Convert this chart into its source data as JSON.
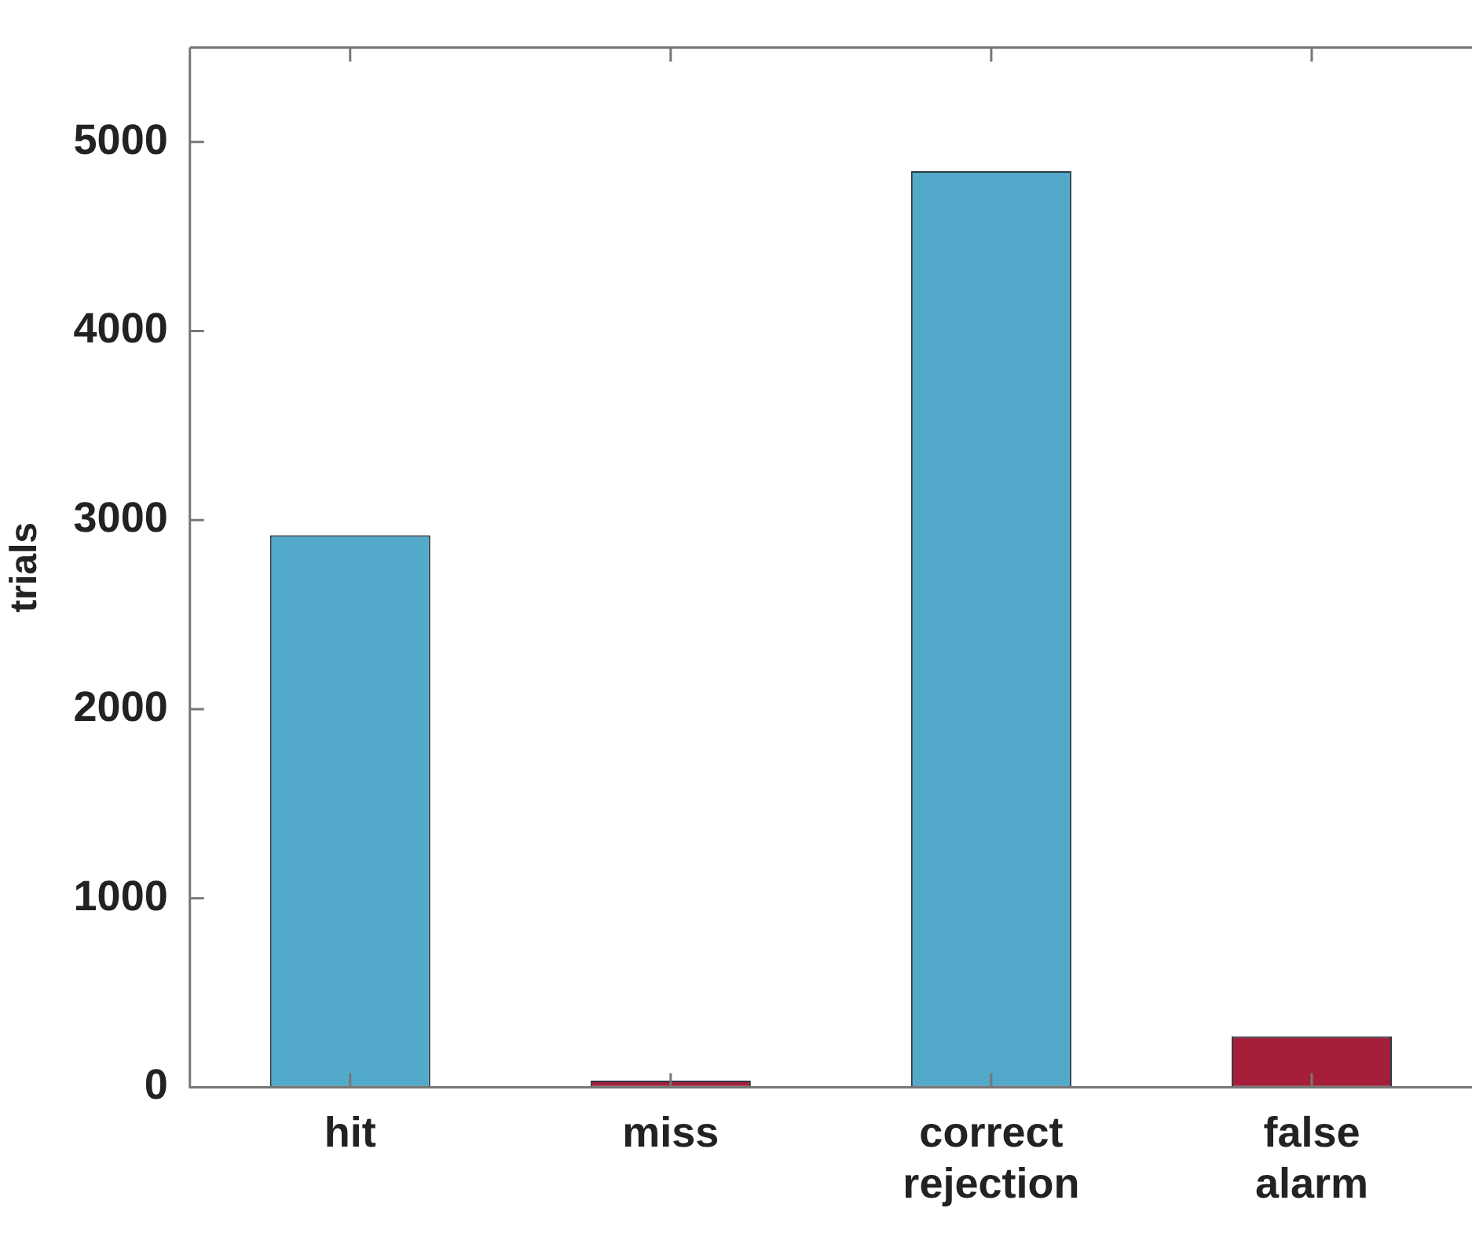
{
  "chart_data": {
    "type": "bar",
    "ylabel": "trials",
    "categories": [
      "hit",
      "miss",
      "correct rejection",
      "false alarm"
    ],
    "values": [
      2920,
      35,
      4845,
      270
    ],
    "colors": [
      "#52a9c9",
      "#a41e3a",
      "#52a9c9",
      "#a41e3a"
    ],
    "ylim": [
      0,
      5500
    ],
    "yticks": [
      0,
      1000,
      2000,
      3000,
      4000,
      5000
    ],
    "grid": false,
    "legend": false
  }
}
